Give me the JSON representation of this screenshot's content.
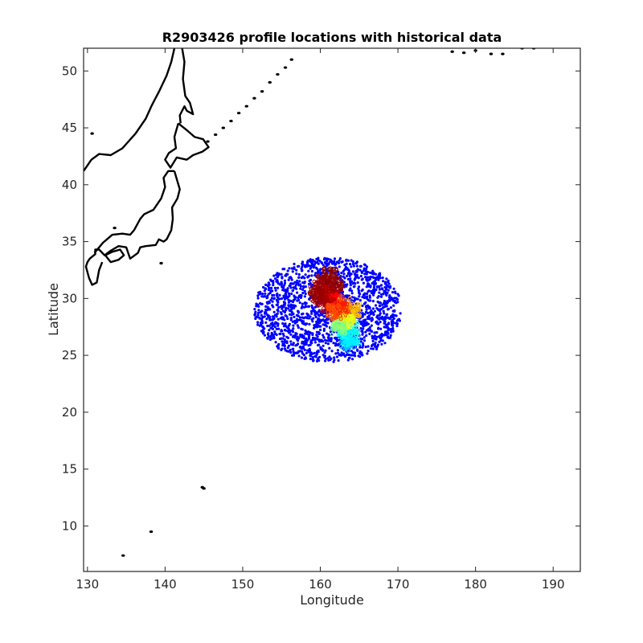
{
  "chart_data": {
    "type": "scatter",
    "title": "R2903426 profile locations with historical data",
    "xlabel": "Longitude",
    "ylabel": "Latitude",
    "xlim": [
      129.5,
      193.5
    ],
    "ylim": [
      6,
      52
    ],
    "xticks": [
      130,
      140,
      150,
      160,
      170,
      180,
      190
    ],
    "yticks": [
      10,
      15,
      20,
      25,
      30,
      35,
      40,
      45,
      50
    ],
    "grid": false,
    "legend": "none",
    "historical": {
      "color": "#0000ff",
      "center": [
        161,
        29
      ],
      "radius_deg": [
        9.5,
        4.6
      ],
      "count": 1800
    },
    "profiles": {
      "colormap": "jet",
      "points": [
        [
          163.5,
          26.0,
          0.3
        ],
        [
          163.8,
          26.6,
          0.34
        ],
        [
          163.2,
          27.0,
          0.38
        ],
        [
          164.0,
          27.4,
          0.42
        ],
        [
          163.0,
          27.8,
          0.46
        ],
        [
          162.5,
          28.2,
          0.58
        ],
        [
          163.6,
          28.6,
          0.66
        ],
        [
          164.2,
          29.0,
          0.7
        ],
        [
          163.0,
          29.4,
          0.75
        ],
        [
          162.2,
          29.8,
          0.82
        ],
        [
          161.5,
          30.2,
          0.88
        ],
        [
          160.8,
          30.6,
          0.92
        ],
        [
          160.0,
          31.0,
          0.95
        ],
        [
          160.5,
          31.5,
          0.97
        ],
        [
          161.2,
          32.0,
          0.99
        ],
        [
          162.0,
          31.2,
          0.98
        ],
        [
          161.0,
          29.5,
          0.93
        ],
        [
          160.2,
          30.0,
          0.96
        ],
        [
          159.5,
          30.4,
          0.98
        ],
        [
          162.8,
          29.0,
          0.85
        ],
        [
          163.4,
          27.9,
          0.6
        ],
        [
          164.1,
          26.5,
          0.36
        ],
        [
          162.3,
          27.5,
          0.5
        ],
        [
          161.8,
          28.8,
          0.8
        ]
      ]
    },
    "coast_color": "#000000"
  }
}
